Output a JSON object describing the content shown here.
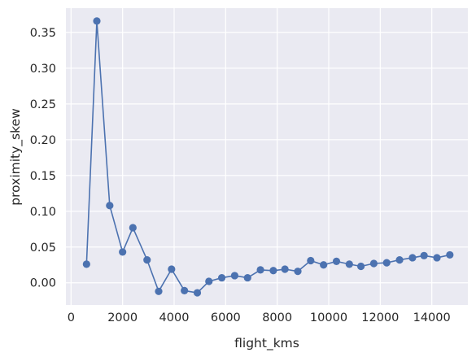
{
  "chart_data": {
    "type": "line",
    "title": "",
    "xlabel": "flight_kms",
    "ylabel": "proximity_skew",
    "xlim": [
      -200,
      15400
    ],
    "ylim": [
      -0.031,
      0.384
    ],
    "x_ticks": [
      0,
      2000,
      4000,
      6000,
      8000,
      10000,
      12000,
      14000
    ],
    "y_ticks": [
      0.0,
      0.05,
      0.1,
      0.15,
      0.2,
      0.25,
      0.3,
      0.35
    ],
    "x_tick_labels": [
      "0",
      "2000",
      "4000",
      "6000",
      "8000",
      "10000",
      "12000",
      "14000"
    ],
    "y_tick_labels": [
      "0.00",
      "0.05",
      "0.10",
      "0.15",
      "0.20",
      "0.25",
      "0.30",
      "0.35"
    ],
    "grid": true,
    "legend": "none",
    "colors": {
      "background": "#eaeaf2",
      "grid": "#ffffff",
      "series": "#4c72b0"
    },
    "series": [
      {
        "x": [
          600,
          1000,
          1500,
          2000,
          2400,
          2950,
          3400,
          3900,
          4400,
          4900,
          5350,
          5850,
          6350,
          6850,
          7350,
          7850,
          8300,
          8800,
          9300,
          9800,
          10300,
          10800,
          11250,
          11750,
          12250,
          12750,
          13250,
          13700,
          14200,
          14700
        ],
        "y": [
          0.026,
          0.366,
          0.108,
          0.043,
          0.077,
          0.032,
          -0.012,
          0.019,
          -0.011,
          -0.014,
          0.002,
          0.007,
          0.01,
          0.007,
          0.018,
          0.017,
          0.019,
          0.016,
          0.031,
          0.025,
          0.03,
          0.026,
          0.023,
          0.027,
          0.028,
          0.032,
          0.035,
          0.038,
          0.035,
          0.039
        ]
      }
    ]
  }
}
